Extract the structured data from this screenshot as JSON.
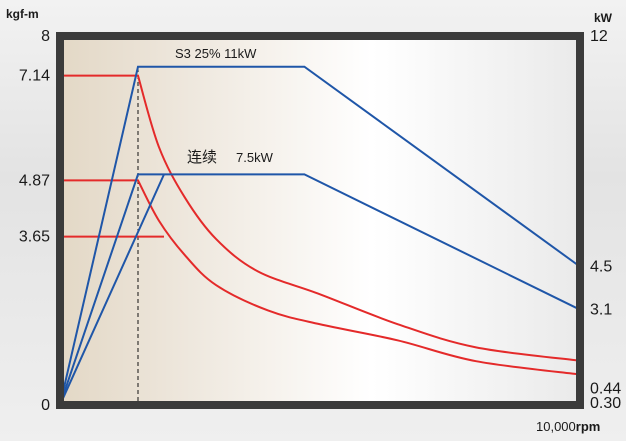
{
  "chart_data": {
    "type": "line",
    "colors": {
      "torque": "#e42a2a",
      "power": "#1f56a8",
      "frame": "#3b3b3b",
      "guide": "#111111"
    },
    "y_left": {
      "unit": "kgf-m",
      "range": [
        0,
        8
      ],
      "ticks": [
        "0",
        "3.65",
        "4.87",
        "7.14",
        "8"
      ],
      "tick_values": [
        0,
        3.65,
        4.87,
        7.14,
        8
      ]
    },
    "y_right": {
      "unit": "kW",
      "range": [
        0,
        12
      ],
      "ticks": [
        "0.30",
        "0.44",
        "3.1",
        "4.5",
        "12"
      ],
      "tick_values": [
        0.3,
        0.44,
        3.1,
        4.5,
        12
      ]
    },
    "x": {
      "range": [
        0,
        10000
      ],
      "end_label_value": "10,000",
      "end_label_unit": "rpm",
      "base_speed": 1500
    },
    "annotations": {
      "s3": "S3 25% 11kW",
      "cont": "连续",
      "cont_power": "7.5kW"
    },
    "torque_series": [
      {
        "values": [
          [
            0,
            7.14
          ],
          [
            1500,
            7.14
          ],
          [
            1900,
            5.6
          ],
          [
            2400,
            4.5
          ],
          [
            3000,
            3.6
          ],
          [
            3800,
            2.9
          ],
          [
            5000,
            2.4
          ],
          [
            6500,
            1.75
          ],
          [
            8000,
            1.25
          ],
          [
            10000,
            0.96
          ]
        ]
      },
      {
        "values": [
          [
            0,
            4.87
          ],
          [
            1500,
            4.87
          ],
          [
            1900,
            4.0
          ],
          [
            2400,
            3.25
          ],
          [
            3000,
            2.6
          ],
          [
            4000,
            2.05
          ],
          [
            5000,
            1.75
          ],
          [
            6500,
            1.4
          ],
          [
            8000,
            0.95
          ],
          [
            10000,
            0.66
          ]
        ]
      },
      {
        "values": [
          [
            0,
            3.65
          ],
          [
            2000,
            3.65
          ]
        ]
      }
    ],
    "power_series": [
      {
        "values": [
          [
            0,
            0
          ],
          [
            1500,
            11
          ],
          [
            4700,
            11
          ],
          [
            10000,
            4.5
          ]
        ]
      },
      {
        "values": [
          [
            0,
            0
          ],
          [
            1500,
            7.5
          ],
          [
            4700,
            7.5
          ],
          [
            10000,
            3.1
          ]
        ]
      },
      {
        "values": [
          [
            0,
            0
          ],
          [
            2000,
            7.5
          ]
        ]
      }
    ]
  }
}
